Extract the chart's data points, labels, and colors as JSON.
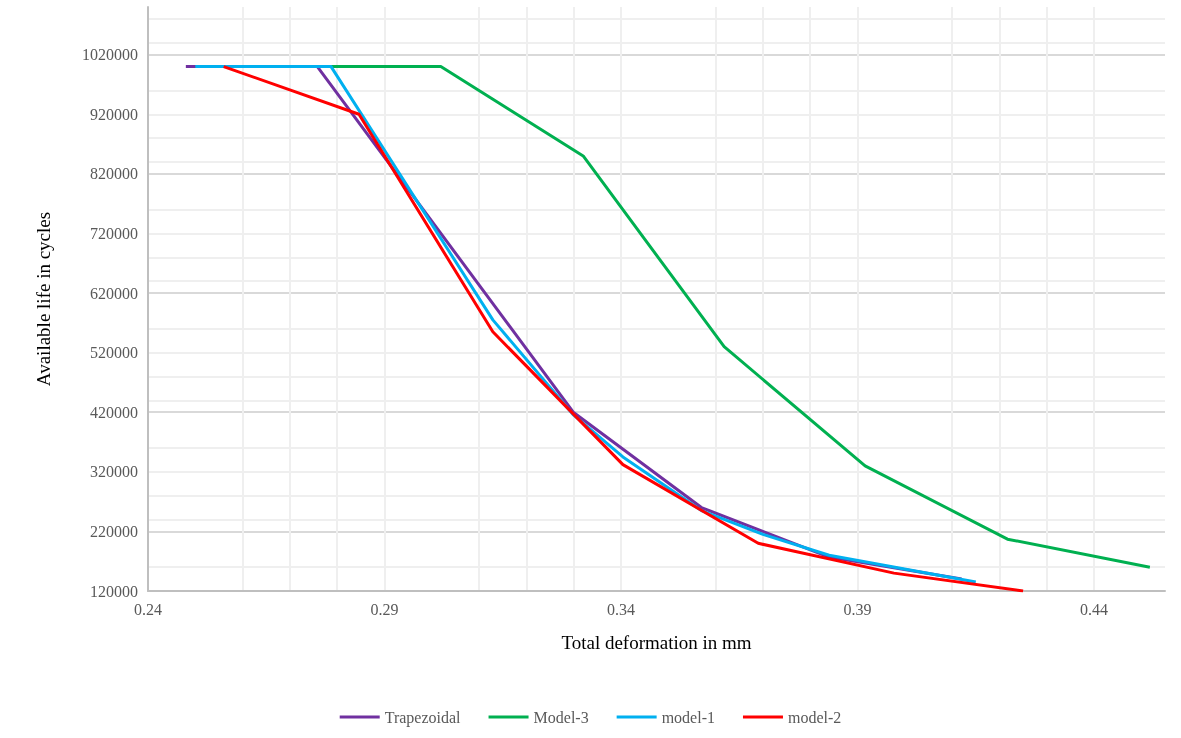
{
  "chart_data": {
    "type": "line",
    "xlabel": "Total deformation in mm",
    "ylabel": "Available life in cycles",
    "xlim": [
      0.24,
      0.455
    ],
    "xticks": [
      0.24,
      0.29,
      0.34,
      0.39,
      0.44
    ],
    "ylim": [
      120000,
      1100000
    ],
    "yticks": [
      120000,
      220000,
      320000,
      420000,
      520000,
      620000,
      720000,
      820000,
      920000,
      1020000
    ],
    "grid": true,
    "legend": "bottom",
    "marker": "none",
    "line_style": "solid",
    "series": [
      {
        "name": "Trapezoidal",
        "color": "#7030a0",
        "x": [
          0.248,
          0.2758,
          0.3299,
          0.357,
          0.384,
          0.412
        ],
        "values": [
          1000000,
          1000000,
          420000,
          260000,
          177000,
          140000
        ]
      },
      {
        "name": "Model-3",
        "color": "#00b050",
        "x": [
          0.278,
          0.3019,
          0.332,
          0.3618,
          0.3916,
          0.4217,
          0.4518
        ],
        "values": [
          1000000,
          1000000,
          850000,
          530000,
          330000,
          207000,
          160000
        ]
      },
      {
        "name": "model-1",
        "color": "#00b0f0",
        "x": [
          0.25,
          0.2787,
          0.3129,
          0.33,
          0.3404,
          0.357,
          0.37,
          0.384,
          0.415
        ],
        "values": [
          1000000,
          1000000,
          575000,
          415000,
          345000,
          255000,
          215000,
          180000,
          135000
        ]
      },
      {
        "name": "model-2",
        "color": "#ff0000",
        "x": [
          0.256,
          0.2846,
          0.3129,
          0.3404,
          0.369,
          0.3977,
          0.425
        ],
        "values": [
          1000000,
          920000,
          555000,
          332000,
          200000,
          150000,
          120000
        ]
      }
    ]
  }
}
